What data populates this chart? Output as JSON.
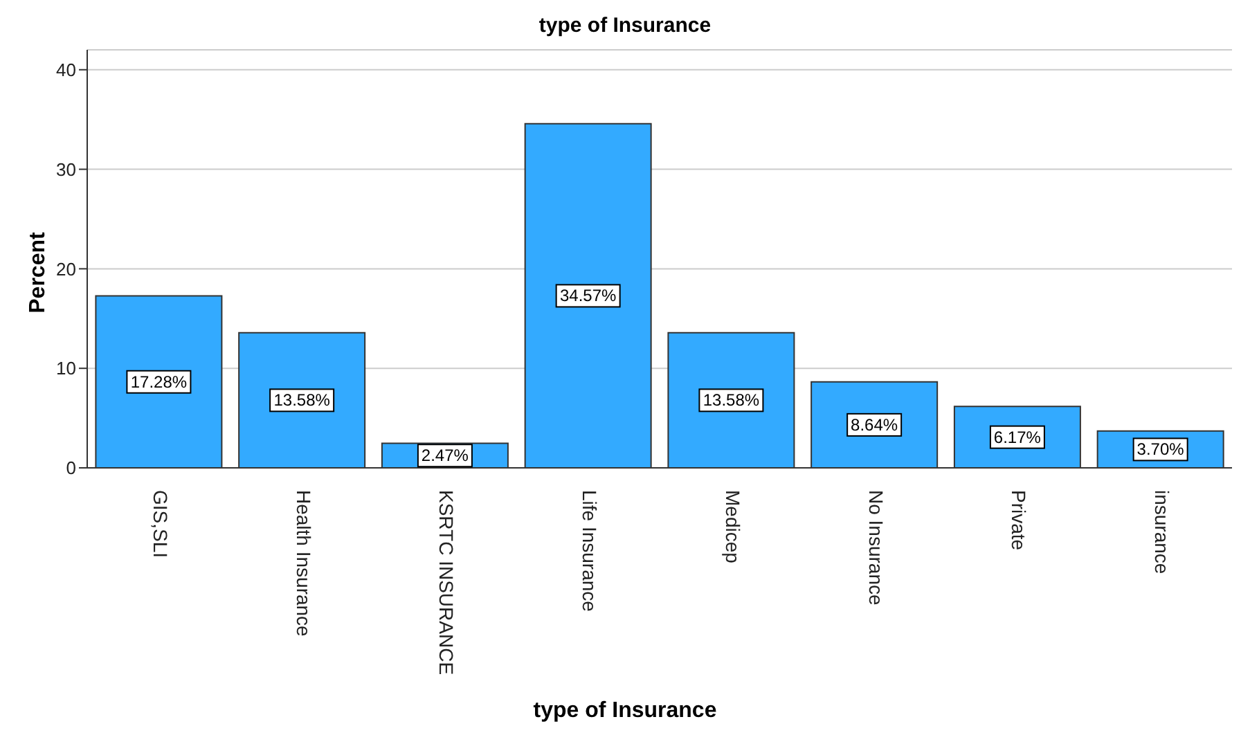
{
  "chart_data": {
    "type": "bar",
    "title": "type of Insurance",
    "xlabel": "type of Insurance",
    "ylabel": "Percent",
    "categories": [
      "GIS,SLI",
      "Health Insurance",
      "KSRTC INSURANCE",
      "Life Insurance",
      "Medicep",
      "No Insurance",
      "Private",
      "insurance"
    ],
    "values": [
      17.28,
      13.58,
      2.47,
      34.57,
      13.58,
      8.64,
      6.17,
      3.7
    ],
    "value_labels": [
      "17.28%",
      "13.58%",
      "2.47%",
      "34.57%",
      "13.58%",
      "8.64%",
      "6.17%",
      "3.70%"
    ],
    "color": "#33aaff",
    "ylim": [
      0,
      42
    ],
    "yticks": [
      0,
      10,
      20,
      30,
      40
    ],
    "grid": "y",
    "legend": false
  }
}
